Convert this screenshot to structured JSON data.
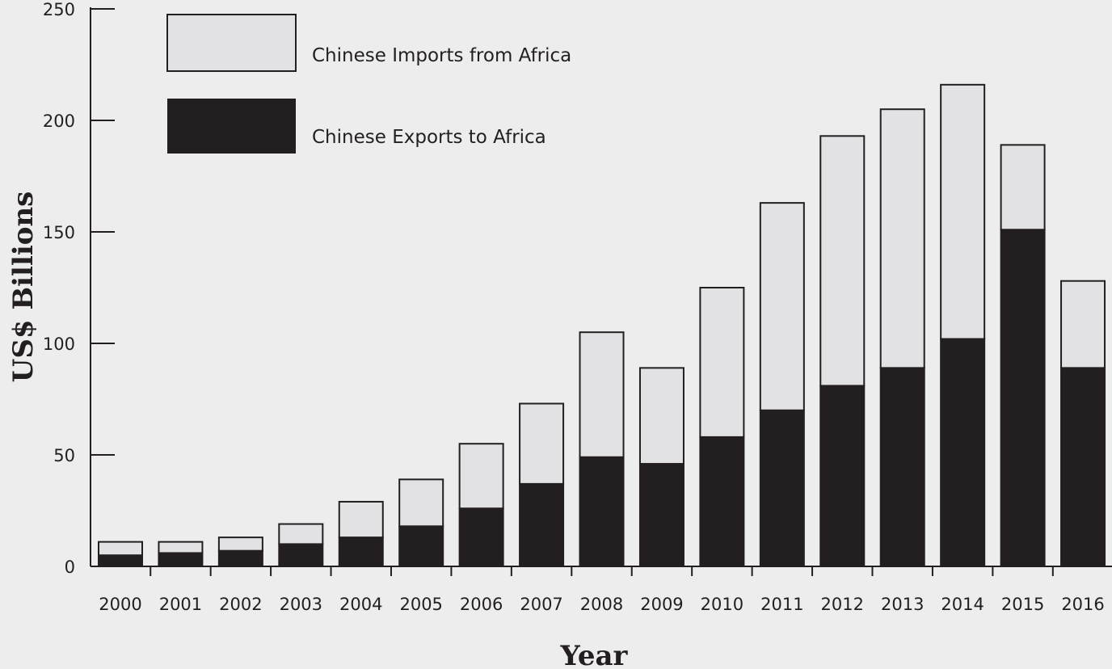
{
  "colors": {
    "background": "#ededed",
    "imports": "#e2e2e4",
    "exports": "#231f20",
    "axis": "#231f20"
  },
  "chart_data": {
    "type": "bar",
    "stacked": true,
    "xlabel": "Year",
    "ylabel": "US$ Billions",
    "ylim": [
      0,
      250
    ],
    "yticks": [
      0,
      50,
      100,
      150,
      200,
      250
    ],
    "grid": false,
    "legend_position": "top-left",
    "categories": [
      "2000",
      "2001",
      "2002",
      "2003",
      "2004",
      "2005",
      "2006",
      "2007",
      "2008",
      "2009",
      "2010",
      "2011",
      "2012",
      "2013",
      "2014",
      "2015",
      "2016"
    ],
    "series": [
      {
        "name": "Chinese Exports to Africa",
        "color": "#231f20",
        "values": [
          5,
          6,
          7,
          10,
          13,
          18,
          26,
          37,
          49,
          46,
          58,
          70,
          81,
          89,
          102,
          151,
          89
        ]
      },
      {
        "name": "Chinese Imports from Africa",
        "color": "#e2e2e4",
        "values": [
          6,
          5,
          6,
          9,
          16,
          21,
          29,
          36,
          56,
          43,
          67,
          93,
          112,
          116,
          114,
          38,
          39
        ]
      }
    ],
    "legend": [
      {
        "label": "Chinese Imports from Africa",
        "color": "#e2e2e4"
      },
      {
        "label": "Chinese Exports to Africa",
        "color": "#231f20"
      }
    ]
  }
}
